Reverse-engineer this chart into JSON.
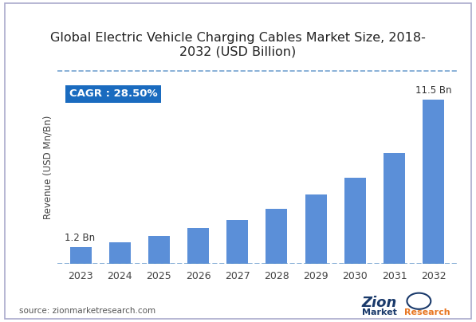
{
  "title": "Global Electric Vehicle Charging Cables Market Size, 2018-\n2032 (USD Billion)",
  "ylabel": "Revenue (USD Mn/Bn)",
  "source": "source: zionmarketresearch.com",
  "cagr_label": "CAGR : 28.50%",
  "years": [
    "2023",
    "2024",
    "2025",
    "2026",
    "2027",
    "2028",
    "2029",
    "2030",
    "2031",
    "2032"
  ],
  "values": [
    1.2,
    1.54,
    1.97,
    2.53,
    3.08,
    3.85,
    4.85,
    6.05,
    7.75,
    11.5
  ],
  "bar_color": "#5b8fd8",
  "annotation_first": "1.2 Bn",
  "annotation_last": "11.5 Bn",
  "ylim_max": 13.5,
  "bg_color": "#ffffff",
  "cagr_bg": "#1a6bbf",
  "cagr_text_color": "#ffffff",
  "title_fontsize": 11.5,
  "axis_label_fontsize": 8.5,
  "tick_fontsize": 9,
  "annotation_fontsize": 8.5,
  "dashed_line_color": "#6699cc",
  "bar_width": 0.55
}
